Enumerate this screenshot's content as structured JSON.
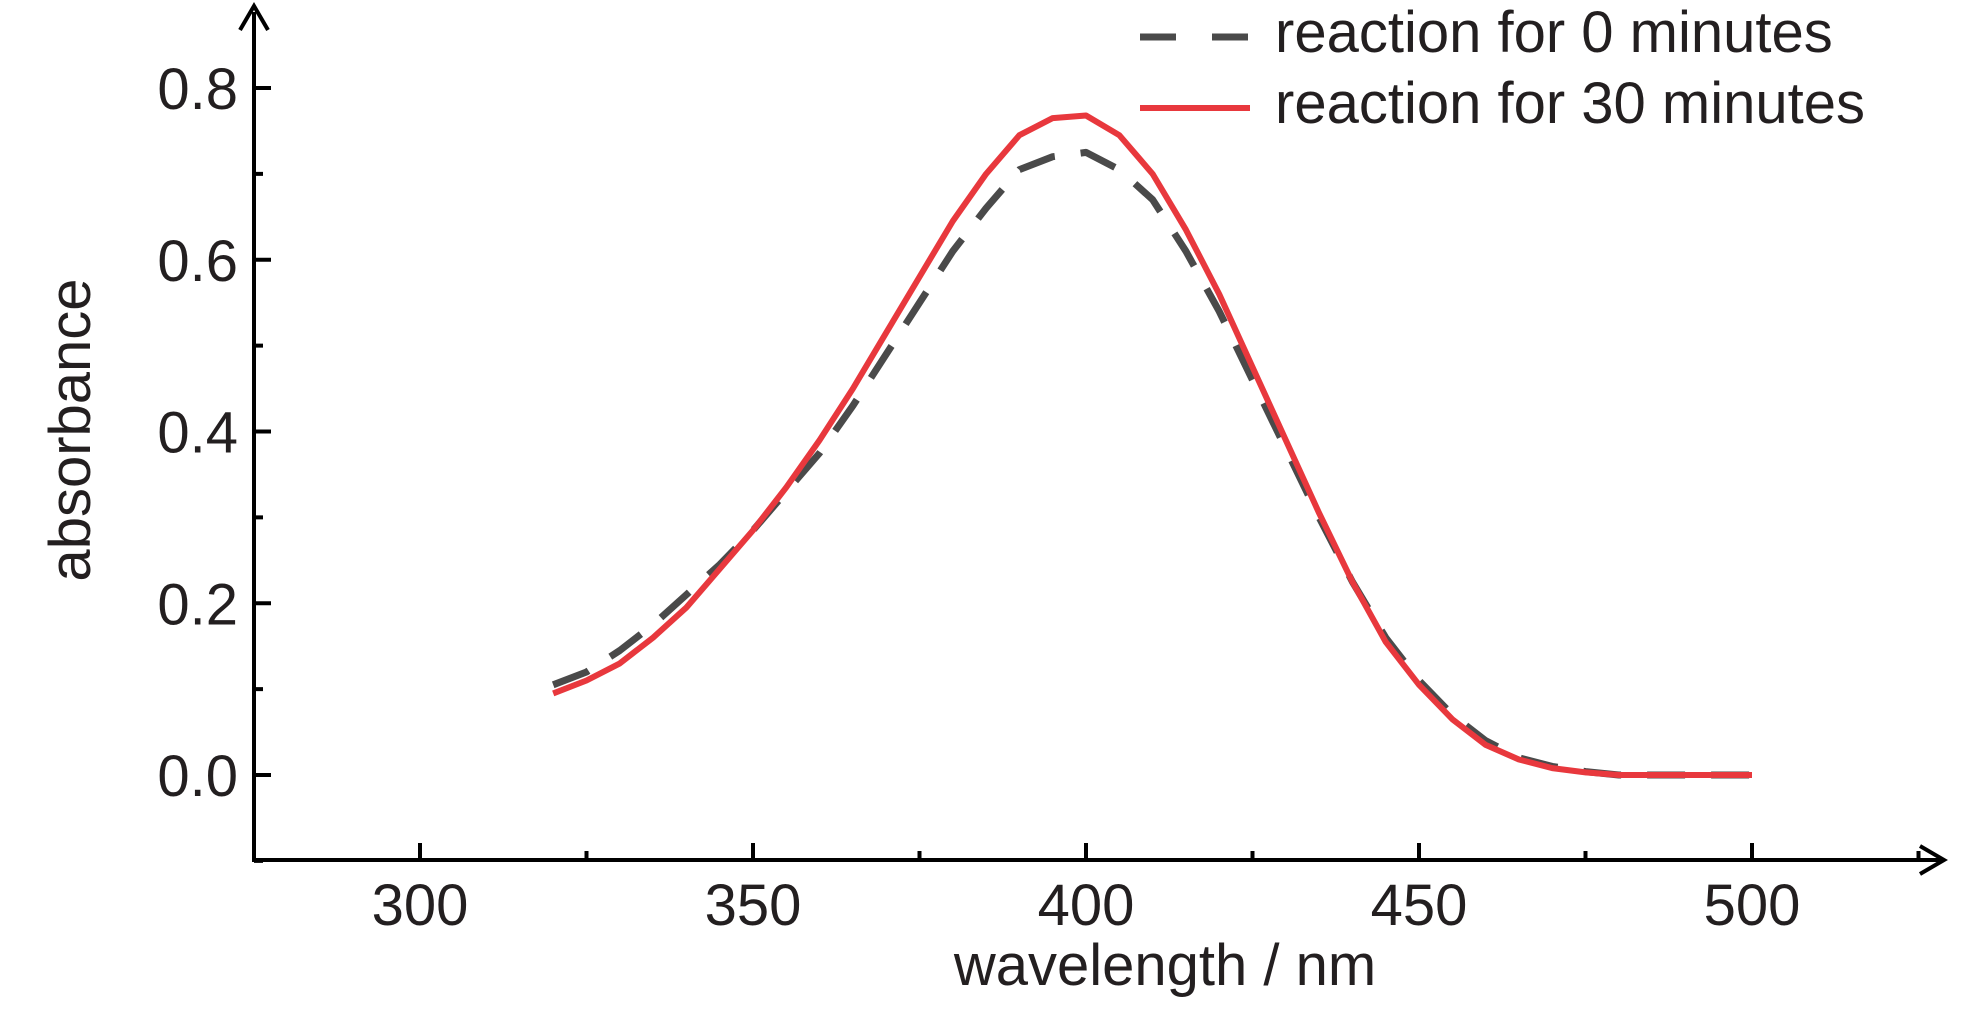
{
  "chart_data": {
    "type": "line",
    "title": "",
    "xlabel": "wavelength / nm",
    "ylabel": "absorbance",
    "xlim": [
      275,
      525
    ],
    "ylim": [
      -0.1,
      0.88
    ],
    "x_ticks": [
      300,
      350,
      400,
      450,
      500
    ],
    "x_tick_labels": [
      "300",
      "350",
      "400",
      "450",
      "500"
    ],
    "y_ticks": [
      0.0,
      0.2,
      0.4,
      0.6,
      0.8
    ],
    "y_tick_labels": [
      "0.0",
      "0.2",
      "0.4",
      "0.6",
      "0.8"
    ],
    "grid": false,
    "legend_position": "top-right",
    "series": [
      {
        "name": "reaction for 0 minutes",
        "style": "dashed",
        "color": "#4a4a4a",
        "x": [
          320,
          325,
          330,
          335,
          340,
          345,
          350,
          355,
          360,
          365,
          370,
          375,
          380,
          385,
          390,
          395,
          400,
          405,
          410,
          415,
          420,
          425,
          430,
          435,
          440,
          445,
          450,
          455,
          460,
          465,
          470,
          475,
          480,
          485,
          490,
          495,
          500
        ],
        "y": [
          0.105,
          0.12,
          0.145,
          0.175,
          0.21,
          0.245,
          0.285,
          0.33,
          0.375,
          0.43,
          0.49,
          0.55,
          0.61,
          0.66,
          0.705,
          0.72,
          0.725,
          0.705,
          0.67,
          0.61,
          0.54,
          0.46,
          0.38,
          0.3,
          0.225,
          0.16,
          0.11,
          0.07,
          0.04,
          0.02,
          0.01,
          0.004,
          0.0,
          0.0,
          0.0,
          0.0,
          0.0
        ]
      },
      {
        "name": "reaction for 30 minutes",
        "style": "solid",
        "color": "#e8383d",
        "x": [
          320,
          325,
          330,
          335,
          340,
          345,
          350,
          355,
          360,
          365,
          370,
          375,
          380,
          385,
          390,
          395,
          400,
          405,
          410,
          415,
          420,
          425,
          430,
          435,
          440,
          445,
          450,
          455,
          460,
          465,
          470,
          475,
          480,
          485,
          490,
          495,
          500
        ],
        "y": [
          0.095,
          0.11,
          0.13,
          0.16,
          0.195,
          0.24,
          0.285,
          0.335,
          0.39,
          0.45,
          0.515,
          0.58,
          0.645,
          0.7,
          0.745,
          0.765,
          0.768,
          0.745,
          0.7,
          0.635,
          0.56,
          0.475,
          0.39,
          0.305,
          0.225,
          0.155,
          0.105,
          0.065,
          0.035,
          0.018,
          0.008,
          0.003,
          0.0,
          0.0,
          0.0,
          0.0,
          0.0
        ]
      }
    ]
  }
}
